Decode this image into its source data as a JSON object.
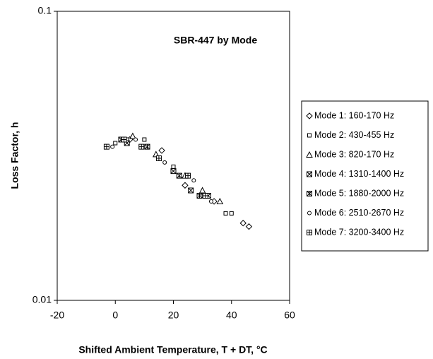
{
  "chart_data": {
    "type": "scatter",
    "title": "SBR-447 by Mode",
    "x_label": "Shifted Ambient Temperature, T + DT, °C",
    "y_label": "Loss Factor, h",
    "xlim": [
      -20,
      60
    ],
    "xticks": [
      -20,
      0,
      20,
      40,
      60
    ],
    "ylim": [
      0.01,
      0.1
    ],
    "yticks": [
      0.01,
      0.1
    ],
    "y_log": true,
    "grid": false,
    "legend": "right",
    "series": [
      {
        "name": "Mode 1: 160-170 Hz",
        "color": "#000000",
        "marker": "diamond",
        "x": [
          5,
          16,
          24,
          34,
          44,
          46
        ],
        "values": [
          0.036,
          0.033,
          0.025,
          0.022,
          0.0185,
          0.018
        ]
      },
      {
        "name": "Mode 2: 430-455 Hz",
        "color": "#000000",
        "marker": "square",
        "x": [
          0,
          4,
          10,
          15,
          20,
          26,
          30,
          38,
          40
        ],
        "values": [
          0.035,
          0.036,
          0.036,
          0.031,
          0.029,
          0.024,
          0.023,
          0.02,
          0.02
        ]
      },
      {
        "name": "Mode 3: 820-170 Hz",
        "color": "#000000",
        "marker": "triangle",
        "x": [
          6,
          14,
          24,
          30,
          36
        ],
        "values": [
          0.037,
          0.032,
          0.027,
          0.024,
          0.022
        ]
      },
      {
        "name": "Mode 4: 1310-1400 Hz",
        "color": "#000000",
        "marker": "square-x",
        "x": [
          4,
          20,
          26,
          32
        ],
        "values": [
          0.035,
          0.028,
          0.024,
          0.023
        ]
      },
      {
        "name": "Mode 5: 1880-2000 Hz",
        "color": "#000000",
        "marker": "square-star",
        "x": [
          2,
          11,
          22,
          29
        ],
        "values": [
          0.036,
          0.034,
          0.027,
          0.023
        ]
      },
      {
        "name": "Mode 6: 2510-2670 Hz",
        "color": "#000000",
        "marker": "circle",
        "x": [
          -1,
          7,
          17,
          27,
          33
        ],
        "values": [
          0.034,
          0.036,
          0.03,
          0.026,
          0.022
        ]
      },
      {
        "name": "Mode 7: 3200-3400 Hz",
        "color": "#000000",
        "marker": "square-plus",
        "x": [
          -3,
          3,
          9,
          15,
          25,
          31
        ],
        "values": [
          0.034,
          0.036,
          0.034,
          0.031,
          0.027,
          0.023
        ]
      }
    ]
  }
}
